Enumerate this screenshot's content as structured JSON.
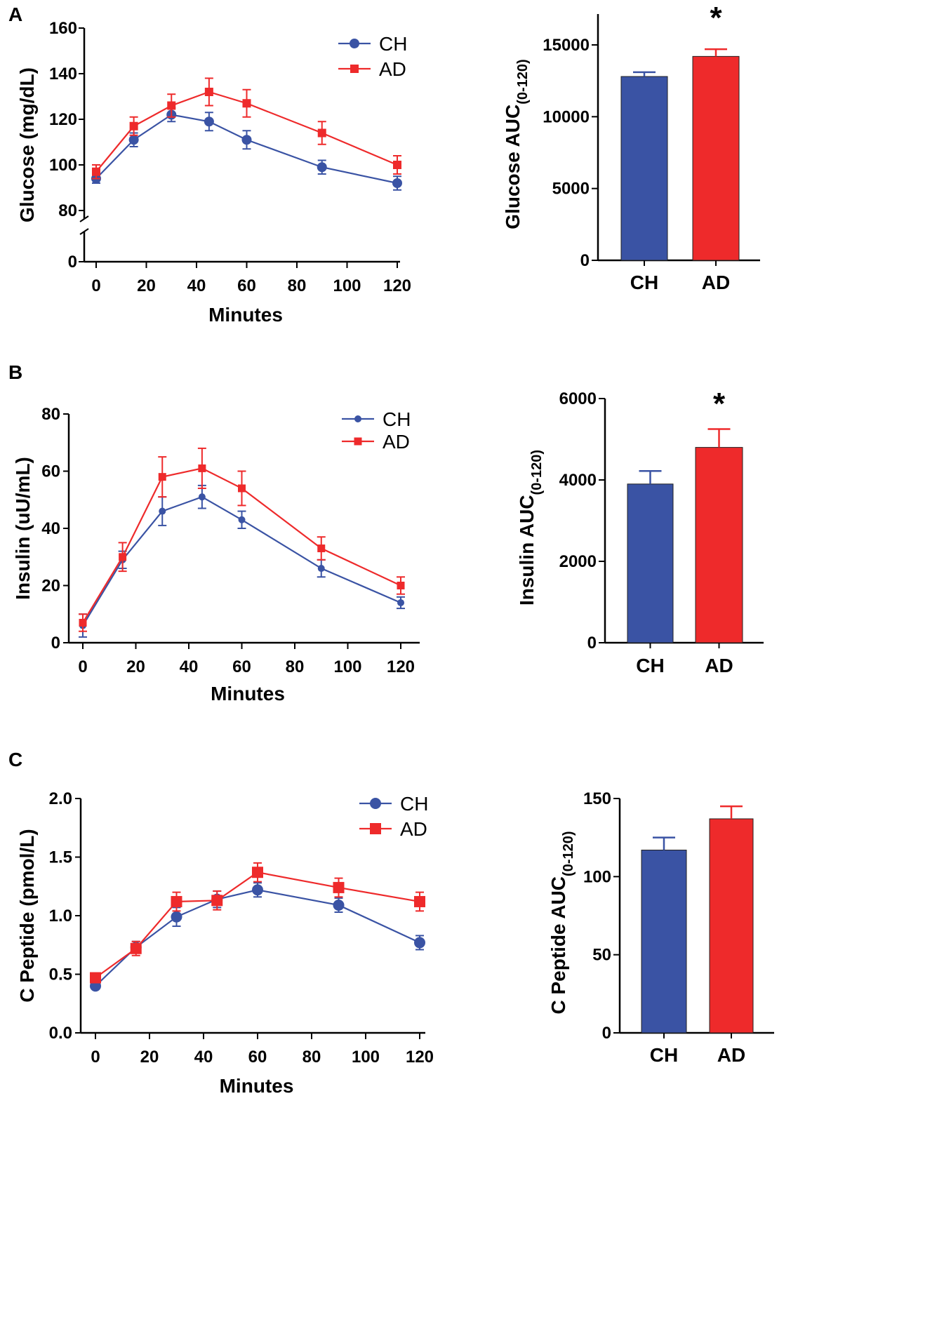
{
  "colors": {
    "CH": "#3a53a4",
    "AD": "#ee2a2b",
    "axis": "#000000"
  },
  "chart_data": [
    {
      "panel": "A",
      "type": "line",
      "xlabel": "Minutes",
      "ylabel": "Glucose (mg/dL)",
      "x": [
        0,
        15,
        30,
        45,
        60,
        90,
        120
      ],
      "xticks": [
        0,
        20,
        40,
        60,
        80,
        100,
        120
      ],
      "xlim": [
        0,
        120
      ],
      "ylim": [
        80,
        160
      ],
      "yticks": [
        "0",
        "80",
        "100",
        "120",
        "140",
        "160"
      ],
      "ytick_values": [
        0,
        80,
        100,
        120,
        140,
        160
      ],
      "axis_break": true,
      "legend": [
        "CH",
        "AD"
      ],
      "legend_position": "top-right",
      "series": [
        {
          "name": "CH",
          "values": [
            94,
            111,
            122,
            119,
            111,
            99,
            92
          ],
          "errors": [
            2,
            3,
            3,
            4,
            4,
            3,
            3
          ]
        },
        {
          "name": "AD",
          "values": [
            97,
            117,
            126,
            132,
            127,
            114,
            100
          ],
          "errors": [
            3,
            4,
            5,
            6,
            6,
            5,
            4
          ]
        }
      ]
    },
    {
      "panel": "A",
      "type": "bar",
      "categories": [
        "CH",
        "AD"
      ],
      "values": [
        12800,
        14200
      ],
      "errors": [
        300,
        500
      ],
      "ylabel": "Glucose AUC",
      "ylabel_sub": "(0-120)",
      "ylim": [
        0,
        17000
      ],
      "yticks": [
        0,
        5000,
        10000,
        15000
      ],
      "significance": "*"
    },
    {
      "panel": "B",
      "type": "line",
      "xlabel": "Minutes",
      "ylabel": "Insulin (uU/mL)",
      "x": [
        0,
        15,
        30,
        45,
        60,
        90,
        120
      ],
      "xticks": [
        0,
        20,
        40,
        60,
        80,
        100,
        120
      ],
      "xlim": [
        0,
        120
      ],
      "ylim": [
        0,
        80
      ],
      "yticks": [
        "0",
        "20",
        "40",
        "60",
        "80"
      ],
      "ytick_values": [
        0,
        20,
        40,
        60,
        80
      ],
      "legend": [
        "CH",
        "AD"
      ],
      "legend_position": "top-right",
      "series": [
        {
          "name": "CH",
          "values": [
            6,
            29,
            46,
            51,
            43,
            26,
            14
          ],
          "errors": [
            4,
            3,
            5,
            4,
            3,
            3,
            2
          ]
        },
        {
          "name": "AD",
          "values": [
            7,
            30,
            58,
            61,
            54,
            33,
            20
          ],
          "errors": [
            3,
            5,
            7,
            7,
            6,
            4,
            3
          ]
        }
      ]
    },
    {
      "panel": "B",
      "type": "bar",
      "categories": [
        "CH",
        "AD"
      ],
      "values": [
        3900,
        4800
      ],
      "errors": [
        320,
        450
      ],
      "ylabel": "Insulin AUC",
      "ylabel_sub": "(0-120)",
      "ylim": [
        0,
        6000
      ],
      "yticks": [
        0,
        2000,
        4000,
        6000
      ],
      "significance": "*"
    },
    {
      "panel": "C",
      "type": "line",
      "xlabel": "Minutes",
      "ylabel": "C Peptide (pmol/L)",
      "x": [
        0,
        15,
        30,
        45,
        60,
        90,
        120
      ],
      "xticks": [
        0,
        20,
        40,
        60,
        80,
        100,
        120
      ],
      "xlim": [
        0,
        120
      ],
      "ylim": [
        0,
        2
      ],
      "yticks": [
        "0.0",
        "0.5",
        "1.0",
        "1.5",
        "2.0"
      ],
      "ytick_values": [
        0,
        0.5,
        1,
        1.5,
        2
      ],
      "legend": [
        "CH",
        "AD"
      ],
      "legend_position": "top-right",
      "series": [
        {
          "name": "CH",
          "values": [
            0.4,
            0.73,
            0.99,
            1.14,
            1.22,
            1.09,
            0.77
          ],
          "errors": [
            0.02,
            0.05,
            0.08,
            0.07,
            0.06,
            0.06,
            0.06
          ]
        },
        {
          "name": "AD",
          "values": [
            0.47,
            0.72,
            1.12,
            1.13,
            1.37,
            1.24,
            1.12
          ],
          "errors": [
            0.03,
            0.06,
            0.08,
            0.08,
            0.08,
            0.08,
            0.08
          ]
        }
      ]
    },
    {
      "panel": "C",
      "type": "bar",
      "categories": [
        "CH",
        "AD"
      ],
      "values": [
        117,
        137
      ],
      "errors": [
        8,
        8
      ],
      "ylabel": "C Peptide AUC",
      "ylabel_sub": "(0-120)",
      "ylim": [
        0,
        150
      ],
      "yticks": [
        0,
        50,
        100,
        150
      ],
      "significance": ""
    }
  ]
}
